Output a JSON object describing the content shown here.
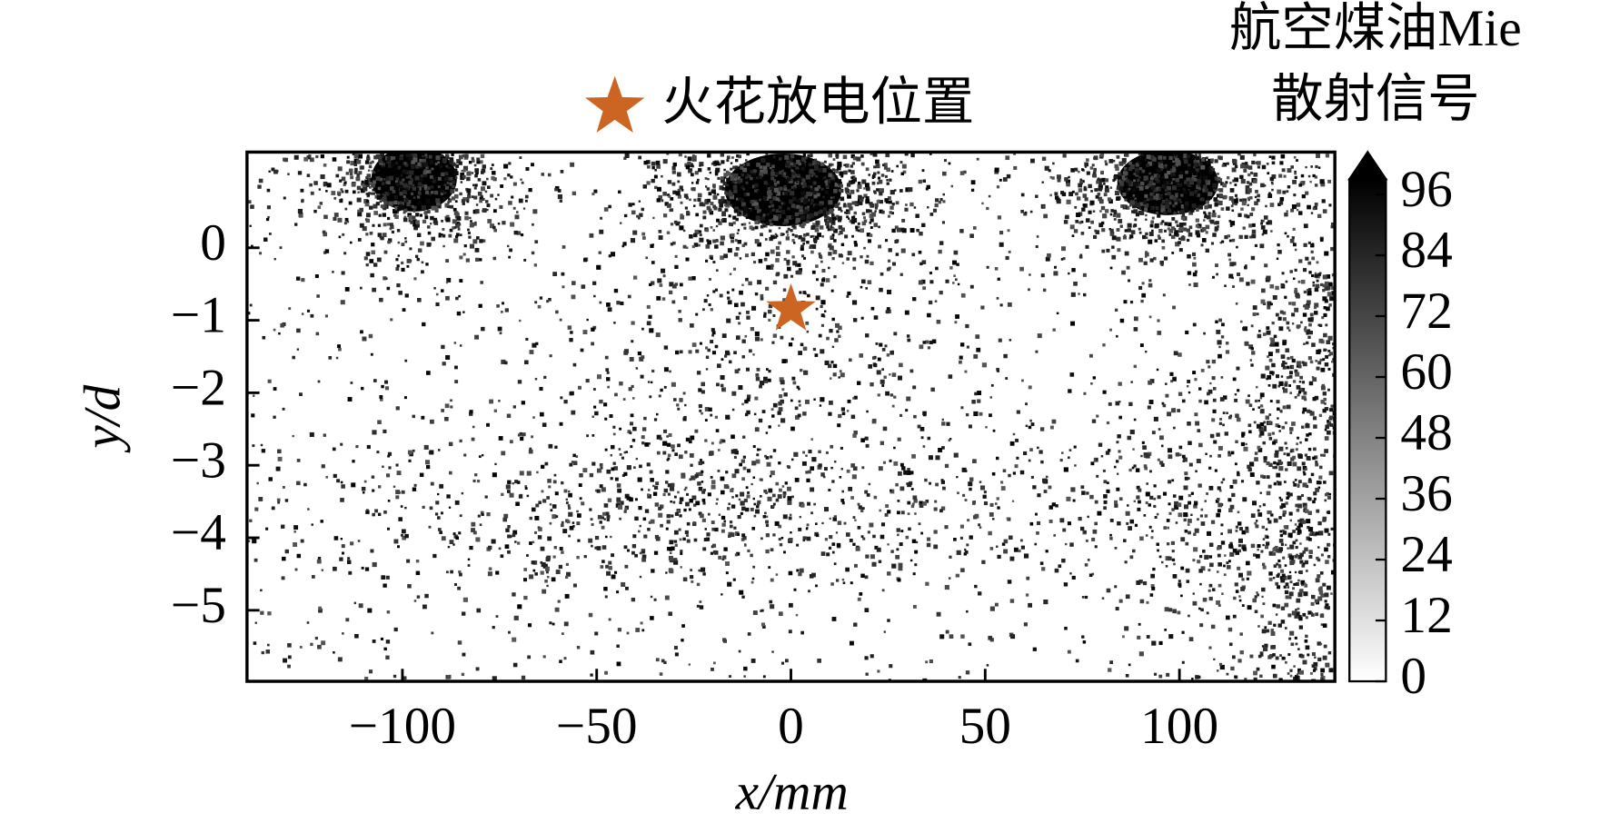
{
  "chart_data": {
    "type": "image",
    "xlabel": "x/mm",
    "ylabel": "y/d",
    "xlim": [
      -140,
      140
    ],
    "ylim": [
      -5.98,
      1.32
    ],
    "xticks": [
      {
        "value": -100,
        "label": "−100"
      },
      {
        "value": -50,
        "label": "−50"
      },
      0,
      50,
      100
    ],
    "yticks": [
      0,
      {
        "value": -1,
        "label": "−1"
      },
      {
        "value": -2,
        "label": "−2"
      },
      {
        "value": -3,
        "label": "−3"
      },
      {
        "value": -4,
        "label": "−4"
      },
      {
        "value": -5,
        "label": "−5"
      }
    ],
    "series": [
      {
        "name": "火花放电位置",
        "color": "#cc6422",
        "marker": "star",
        "x": [
          0
        ],
        "values": [
          -0.85
        ]
      }
    ],
    "colorbar": {
      "label": [
        "航空煤油Mie",
        "散射信号"
      ],
      "lim": [
        0,
        99
      ],
      "ticks": [
        0,
        12,
        24,
        36,
        48,
        60,
        72,
        84,
        96
      ],
      "extend": "max"
    }
  }
}
